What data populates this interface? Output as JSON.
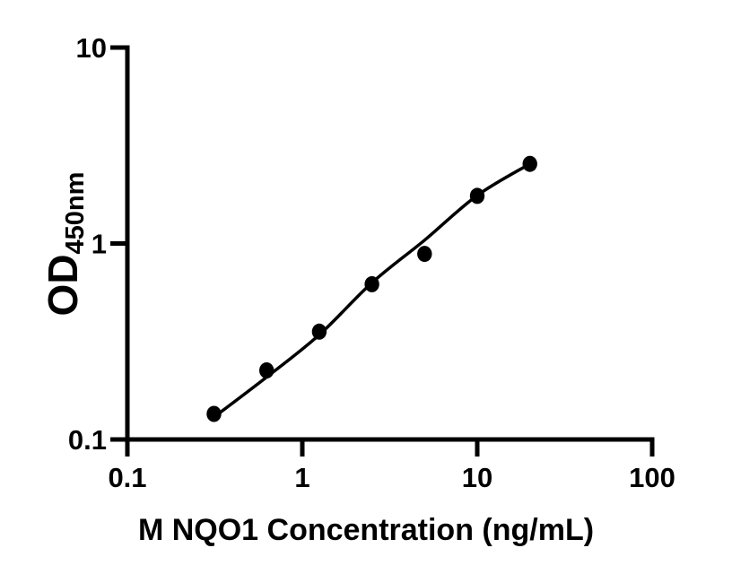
{
  "figure": {
    "background": "#ffffff",
    "ink": "#000000"
  },
  "chart_data": {
    "type": "scatter",
    "title": "",
    "xlabel": "M NQO1 Concentration (ng/mL)",
    "ylabel": "OD450nm",
    "ylabel_main": "OD",
    "ylabel_sub": "450nm",
    "x_scale": "log",
    "y_scale": "log",
    "xlim": [
      0.1,
      100
    ],
    "ylim": [
      0.1,
      10
    ],
    "grid": false,
    "legend": null,
    "x_ticks": [
      {
        "value": 0.1,
        "label": "0.1"
      },
      {
        "value": 1,
        "label": "1"
      },
      {
        "value": 10,
        "label": "10"
      },
      {
        "value": 100,
        "label": "100"
      }
    ],
    "y_ticks": [
      {
        "value": 0.1,
        "label": "0.1"
      },
      {
        "value": 1,
        "label": "1"
      },
      {
        "value": 10,
        "label": "10"
      }
    ],
    "series": [
      {
        "name": "standards",
        "kind": "points",
        "marker": "filled-circle",
        "color": "#000000",
        "x": [
          0.3125,
          0.625,
          1.25,
          2.5,
          5,
          10,
          20
        ],
        "od": [
          0.135,
          0.225,
          0.355,
          0.62,
          0.885,
          1.75,
          2.55
        ]
      },
      {
        "name": "fit-curve",
        "kind": "line",
        "color": "#000000",
        "x": [
          0.3125,
          0.625,
          1.25,
          2.5,
          5,
          10,
          20
        ],
        "od": [
          0.13,
          0.208,
          0.342,
          0.63,
          1.04,
          1.76,
          2.55
        ]
      }
    ]
  }
}
